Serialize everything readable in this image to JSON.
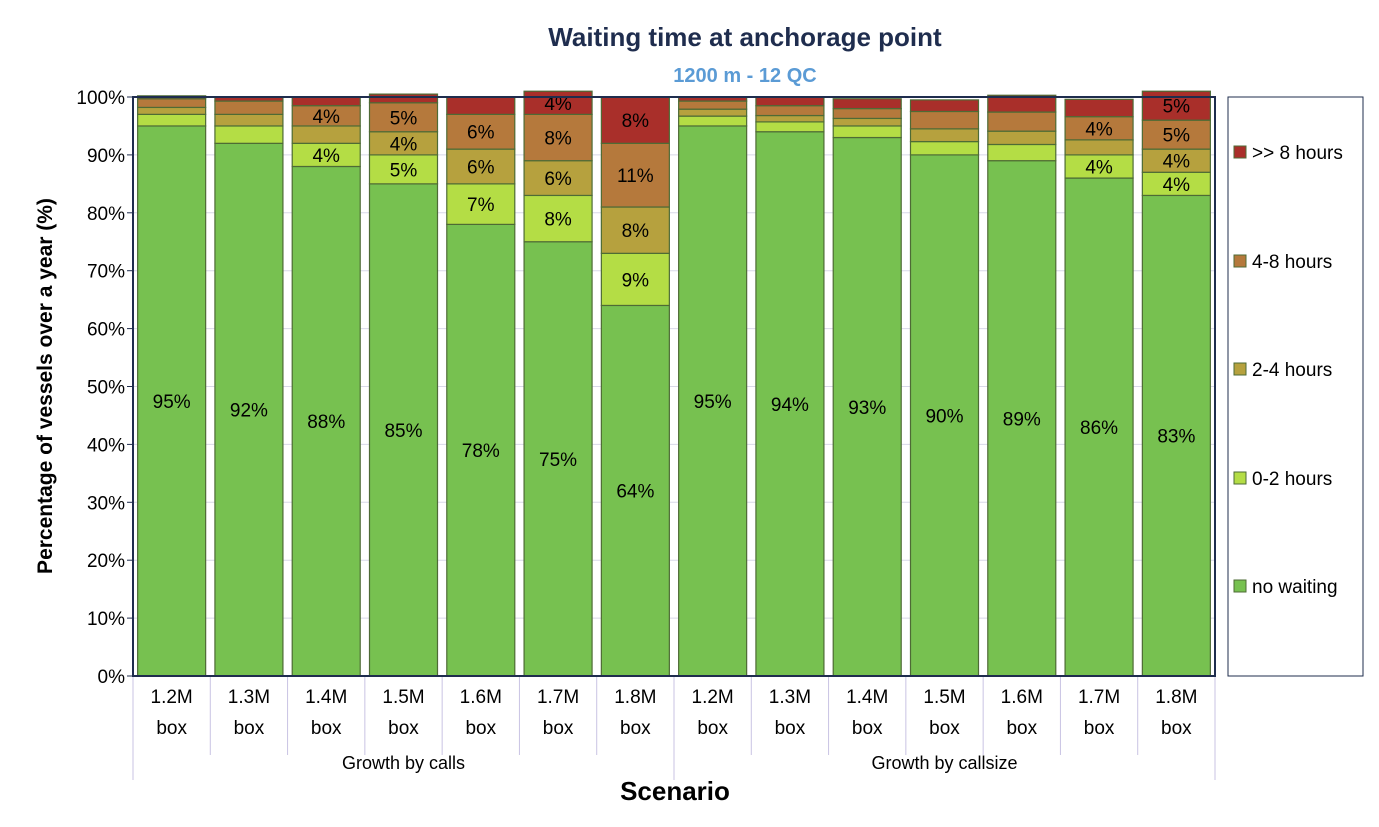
{
  "chart_data": {
    "type": "bar",
    "stacked": true,
    "title": "Waiting time at anchorage point",
    "subtitle": "1200 m - 12 QC",
    "xlabel": "Scenario",
    "ylabel": "Percentage of vessels over a year (%)",
    "ylim": [
      0,
      100
    ],
    "yticks": [
      "0%",
      "10%",
      "20%",
      "30%",
      "40%",
      "50%",
      "60%",
      "70%",
      "80%",
      "90%",
      "100%"
    ],
    "grid": true,
    "legend_position": "right",
    "categories": [
      "1.2M box",
      "1.3M box",
      "1.4M box",
      "1.5M box",
      "1.6M box",
      "1.7M box",
      "1.8M box",
      "1.2M box",
      "1.3M box",
      "1.4M box",
      "1.5M box",
      "1.6M box",
      "1.7M box",
      "1.8M box"
    ],
    "category_lines": [
      [
        "1.2M",
        "box"
      ],
      [
        "1.3M",
        "box"
      ],
      [
        "1.4M",
        "box"
      ],
      [
        "1.5M",
        "box"
      ],
      [
        "1.6M",
        "box"
      ],
      [
        "1.7M",
        "box"
      ],
      [
        "1.8M",
        "box"
      ],
      [
        "1.2M",
        "box"
      ],
      [
        "1.3M",
        "box"
      ],
      [
        "1.4M",
        "box"
      ],
      [
        "1.5M",
        "box"
      ],
      [
        "1.6M",
        "box"
      ],
      [
        "1.7M",
        "box"
      ],
      [
        "1.8M",
        "box"
      ]
    ],
    "groups": [
      {
        "label": "Growth by calls",
        "count": 7
      },
      {
        "label": "Growth by callsize",
        "count": 7
      }
    ],
    "series": [
      {
        "name": "no waiting",
        "color": "#77c150",
        "values": [
          95,
          92,
          88,
          85,
          78,
          75,
          64,
          95,
          94,
          93,
          90,
          89,
          86,
          83
        ],
        "labels": [
          "95%",
          "92%",
          "88%",
          "85%",
          "78%",
          "75%",
          "64%",
          "95%",
          "94%",
          "93%",
          "90%",
          "89%",
          "86%",
          "83%"
        ]
      },
      {
        "name": "0-2 hours",
        "color": "#b4dd45",
        "values": [
          2,
          3,
          4,
          5,
          7,
          8,
          9,
          1.7,
          1.7,
          2,
          2.3,
          2.8,
          4,
          4
        ],
        "labels": [
          null,
          null,
          "4%",
          "5%",
          "7%",
          "8%",
          "9%",
          null,
          null,
          null,
          null,
          null,
          "4%",
          "4%"
        ]
      },
      {
        "name": "2-4 hours",
        "color": "#b6a13e",
        "values": [
          1.2,
          2,
          3,
          4,
          6,
          6,
          8,
          1.2,
          1.1,
          1.3,
          2.2,
          2.3,
          2.6,
          4
        ],
        "labels": [
          null,
          null,
          null,
          "4%",
          "6%",
          "6%",
          "8%",
          null,
          null,
          null,
          null,
          null,
          null,
          "4%"
        ]
      },
      {
        "name": "4-8 hours",
        "color": "#b5793c",
        "values": [
          1.5,
          2.3,
          3.5,
          5,
          6,
          8,
          11,
          1.4,
          1.7,
          1.7,
          3,
          3.3,
          4,
          5
        ],
        "labels": [
          null,
          null,
          "4%",
          "5%",
          "6%",
          "8%",
          "11%",
          null,
          null,
          null,
          null,
          null,
          "4%",
          "5%"
        ]
      },
      {
        "name": ">> 8 hours",
        "color": "#a92f2a",
        "values": [
          0.5,
          0.7,
          1.5,
          1.5,
          3,
          4,
          8,
          0.7,
          1.5,
          1.7,
          2,
          2.9,
          3,
          5
        ],
        "labels": [
          null,
          null,
          null,
          null,
          null,
          "4%",
          "8%",
          null,
          null,
          null,
          null,
          null,
          null,
          "5%"
        ]
      }
    ]
  }
}
